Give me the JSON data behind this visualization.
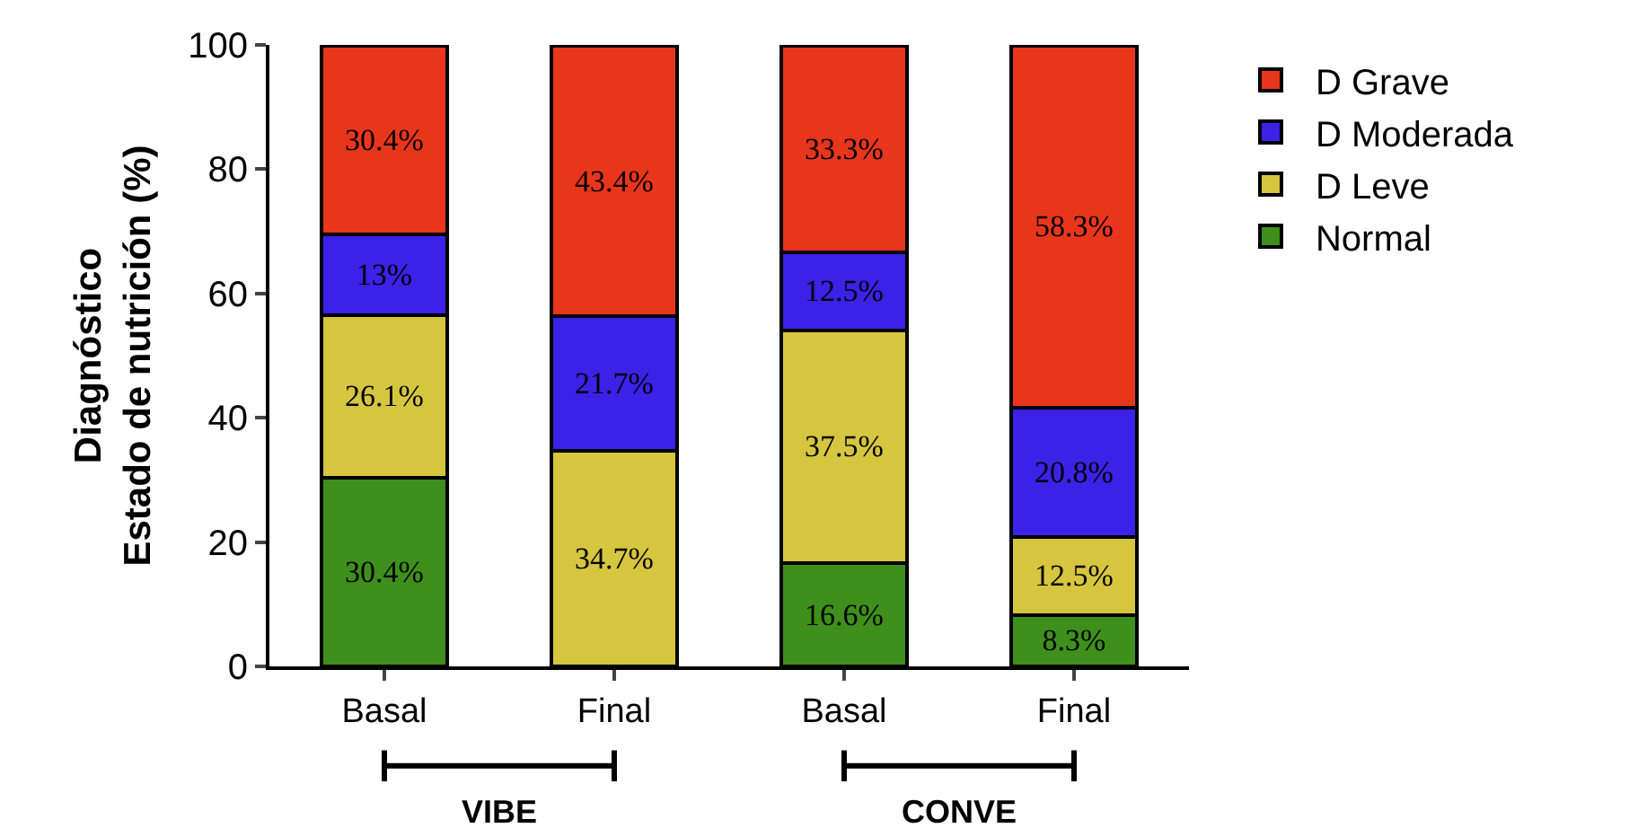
{
  "chart_data": {
    "type": "bar",
    "stacked": true,
    "ylabel": "Diagnóstico\nEstado de nutrición (%)",
    "categories": [
      "Basal",
      "Final",
      "Basal",
      "Final"
    ],
    "ylim": [
      0,
      100
    ],
    "yticks": [
      0,
      20,
      40,
      60,
      80,
      100
    ],
    "legend": "top right",
    "annotations": [
      "VIBE",
      "CONVE"
    ],
    "series": [
      {
        "name": "Normal",
        "color": "#3f8f1c",
        "values": [
          30.4,
          null,
          16.6,
          8.3
        ],
        "value_labels": [
          "30.4%",
          null,
          "16.6%",
          "8.3%"
        ]
      },
      {
        "name": "D Leve",
        "color": "#d6c53f",
        "values": [
          26.1,
          34.7,
          37.5,
          12.5
        ],
        "value_labels": [
          "26.1%",
          "34.7%",
          "37.5%",
          "12.5%"
        ]
      },
      {
        "name": "D Moderada",
        "color": "#3b22e6",
        "values": [
          13,
          21.7,
          12.5,
          20.8
        ],
        "value_labels": [
          "13%",
          "21.7%",
          "12.5%",
          "20.8%"
        ]
      },
      {
        "name": "D Grave",
        "color": "#e8361d",
        "values": [
          30.4,
          43.4,
          33.3,
          58.3
        ],
        "value_labels": [
          "30.4%",
          "43.4%",
          "33.3%",
          "58.3%"
        ]
      }
    ]
  }
}
